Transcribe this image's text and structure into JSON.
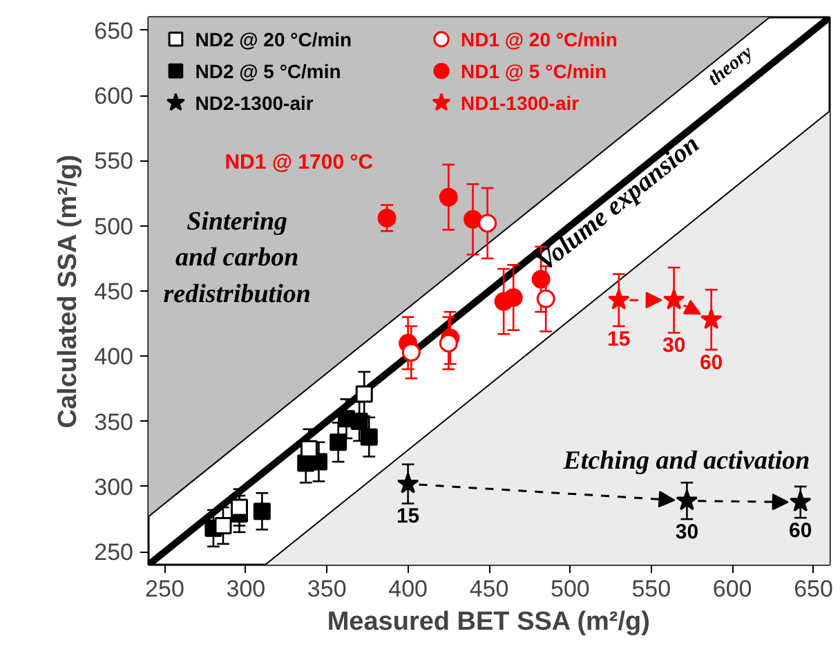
{
  "chart_data": {
    "type": "scatter",
    "xlabel": "Measured BET SSA (m²/g)",
    "ylabel": "Calculated SSA (m²/g)",
    "xlim": [
      240,
      660
    ],
    "ylim": [
      240,
      660
    ],
    "xticks": [
      250,
      300,
      350,
      400,
      450,
      500,
      550,
      600,
      650
    ],
    "yticks": [
      250,
      300,
      350,
      400,
      450,
      500,
      550,
      600,
      650
    ],
    "grid": false,
    "legend": "top left",
    "series": [
      {
        "type": "line",
        "color": "#000000",
        "x": [
          240,
          623
        ],
        "values": [
          277,
          660
        ]
      },
      {
        "type": "line",
        "color": "#000000",
        "x": [
          312,
          660
        ],
        "values": [
          240,
          588
        ]
      },
      {
        "type": "line",
        "color": "#000000",
        "x": [
          240,
          660
        ],
        "values": [
          240,
          660
        ]
      },
      {
        "name": "ND2 @ 20 °C/min",
        "marker": "square",
        "color": "#000000",
        "colors": [
          "#ffffff",
          "#ffffff",
          "#ffffff",
          "#ffffff"
        ],
        "x": [
          286,
          296,
          339,
          373
        ],
        "values": [
          270,
          284,
          329,
          371
        ],
        "errors": [
          14,
          14,
          15,
          17
        ]
      },
      {
        "name": "ND2 @ 5 °C/min",
        "marker": "square",
        "color": "#000000",
        "x": [
          280,
          296,
          310,
          337,
          345,
          357,
          362,
          370,
          376
        ],
        "values": [
          268,
          279,
          281,
          318,
          319,
          334,
          352,
          350,
          338
        ],
        "errors": [
          14,
          14,
          14,
          15,
          15,
          15,
          15,
          15,
          15
        ]
      },
      {
        "name": "ND2-1300-air",
        "marker": "star",
        "line_style": "dashed",
        "color": "#000000",
        "x": [
          400,
          572,
          642
        ],
        "values": [
          302,
          289,
          288
        ],
        "errors": [
          15,
          14,
          12
        ]
      },
      {
        "name": "ND1 @ 20 °C/min",
        "marker": "circle",
        "color": "#ff0000",
        "colors": [
          "#ffffff",
          "#ffffff",
          "#ffffff",
          "#ffffff"
        ],
        "x": [
          402,
          425,
          449,
          485
        ],
        "values": [
          403,
          410,
          502,
          444
        ],
        "errors": [
          20,
          20,
          27,
          25
        ]
      },
      {
        "name": "ND1 @ 5 °C/min",
        "marker": "circle",
        "color": "#ff0000",
        "x": [
          387,
          425,
          440,
          400,
          426,
          459,
          465,
          482
        ],
        "values": [
          506,
          522,
          505,
          410,
          414,
          442,
          445,
          459
        ],
        "errors": [
          10,
          25,
          27,
          20,
          20,
          25,
          25,
          25
        ]
      },
      {
        "name": "ND1-1300-air",
        "marker": "star",
        "line_style": "dashed",
        "color": "#ff0000",
        "x": [
          530,
          564,
          587
        ],
        "values": [
          443,
          443,
          428
        ],
        "errors": [
          20,
          25,
          23
        ]
      }
    ],
    "annotations": [
      "theory",
      "Volume expansion",
      "Sintering\nand carbon\nredistribution",
      "Etching and activation",
      {
        "text": "ND1 @ 1700 °C",
        "x": 387,
        "y": 506
      },
      {
        "text": "15",
        "x": 400,
        "y": 302
      },
      {
        "text": "30",
        "x": 572,
        "y": 289
      },
      {
        "text": "60",
        "x": 642,
        "y": 288
      },
      {
        "text": "15",
        "x": 530,
        "y": 443
      },
      {
        "text": "30",
        "x": 564,
        "y": 443
      },
      {
        "text": "60",
        "x": 587,
        "y": 428
      }
    ]
  }
}
